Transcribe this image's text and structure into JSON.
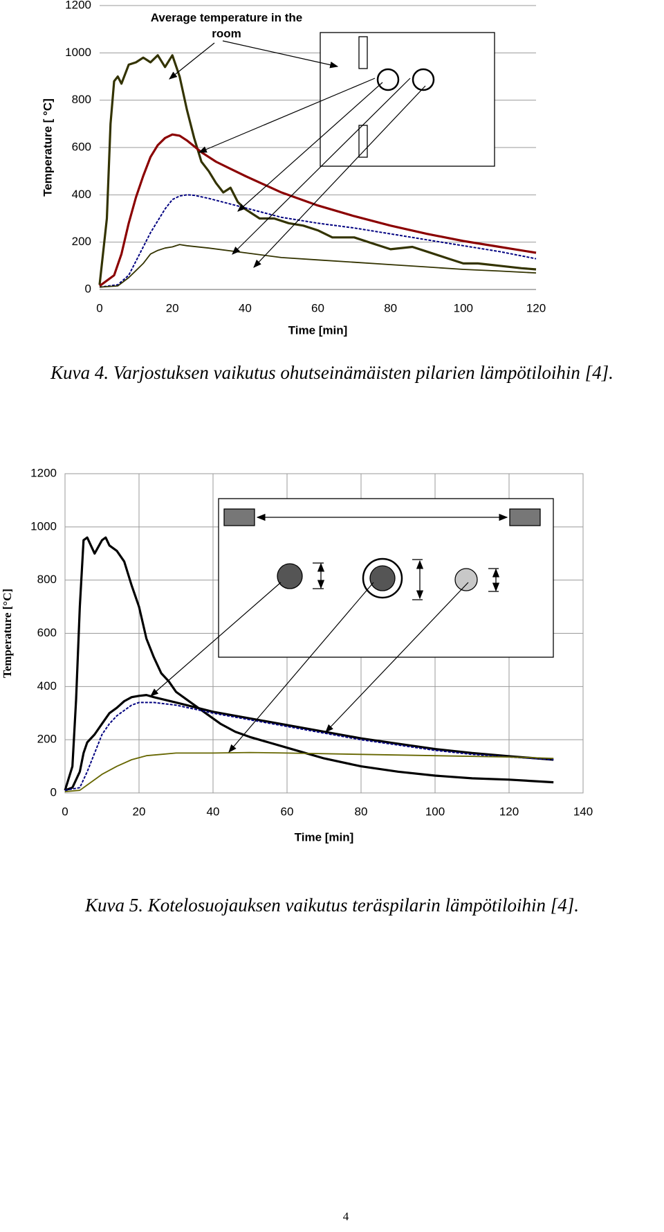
{
  "chart_data": [
    {
      "type": "line",
      "xlabel": "Time [min]",
      "ylabel": "Temperature [ °C]",
      "annotation": "Average temperature in the room",
      "caption": "Kuva 4. Varjostuksen vaikutus ohutseinämäisten pilarien lämpötiloihin [4].",
      "xlim": [
        0,
        120
      ],
      "xticks": [
        0,
        20,
        40,
        60,
        80,
        100,
        120
      ],
      "ylim": [
        0,
        1200
      ],
      "yticks": [
        0,
        200,
        400,
        600,
        800,
        1000,
        1200
      ],
      "grid": "y",
      "series": [
        {
          "color": "#333300",
          "style": "thick",
          "x": [
            0,
            2,
            3,
            4,
            5,
            6,
            8,
            10,
            12,
            14,
            16,
            18,
            20,
            22,
            24,
            26,
            28,
            30,
            32,
            34,
            36,
            38,
            40,
            44,
            48,
            52,
            56,
            60,
            64,
            70,
            76,
            80,
            86,
            90,
            96,
            100,
            104,
            110,
            116,
            120
          ],
          "values": [
            20,
            300,
            700,
            880,
            900,
            870,
            950,
            960,
            980,
            960,
            990,
            940,
            990,
            900,
            760,
            640,
            540,
            500,
            450,
            410,
            430,
            370,
            340,
            300,
            300,
            280,
            270,
            250,
            220,
            220,
            190,
            170,
            180,
            160,
            130,
            110,
            110,
            100,
            90,
            85
          ]
        },
        {
          "color": "#8b0000",
          "style": "thick",
          "x": [
            0,
            4,
            6,
            8,
            10,
            12,
            14,
            16,
            18,
            20,
            22,
            24,
            28,
            32,
            36,
            40,
            50,
            60,
            70,
            80,
            90,
            100,
            110,
            120
          ],
          "values": [
            15,
            60,
            150,
            280,
            390,
            480,
            560,
            610,
            640,
            655,
            650,
            630,
            580,
            540,
            510,
            480,
            410,
            355,
            310,
            270,
            235,
            205,
            180,
            155
          ]
        },
        {
          "color": "#000080",
          "style": "dotted",
          "x": [
            0,
            5,
            8,
            10,
            12,
            14,
            16,
            18,
            20,
            22,
            24,
            26,
            30,
            40,
            50,
            60,
            70,
            80,
            90,
            100,
            110,
            120
          ],
          "values": [
            10,
            20,
            60,
            120,
            180,
            240,
            290,
            340,
            380,
            395,
            400,
            398,
            385,
            345,
            305,
            280,
            260,
            235,
            210,
            185,
            160,
            130
          ]
        },
        {
          "color": "#333300",
          "style": "thin",
          "x": [
            0,
            5,
            8,
            10,
            12,
            14,
            16,
            18,
            20,
            22,
            24,
            30,
            40,
            50,
            60,
            70,
            80,
            90,
            100,
            110,
            120
          ],
          "values": [
            10,
            15,
            50,
            80,
            110,
            150,
            165,
            175,
            180,
            190,
            185,
            175,
            155,
            135,
            125,
            115,
            105,
            95,
            85,
            78,
            70
          ]
        }
      ]
    },
    {
      "type": "line",
      "xlabel": "Time [min]",
      "ylabel": "Temperature [°C]",
      "caption": "Kuva 5. Kotelosuojauksen vaikutus teräspilarin lämpötiloihin [4].",
      "xlim": [
        0,
        140
      ],
      "xticks": [
        0,
        20,
        40,
        60,
        80,
        100,
        120,
        140
      ],
      "ylim": [
        0,
        1200
      ],
      "yticks": [
        0,
        200,
        400,
        600,
        800,
        1000,
        1200
      ],
      "grid": "xy",
      "series": [
        {
          "color": "#000000",
          "style": "thick",
          "x": [
            0,
            2,
            3,
            4,
            5,
            6,
            8,
            10,
            11,
            12,
            14,
            16,
            18,
            20,
            22,
            24,
            26,
            28,
            30,
            34,
            38,
            42,
            46,
            50,
            55,
            60,
            65,
            70,
            80,
            90,
            100,
            110,
            120,
            132
          ],
          "values": [
            10,
            100,
            350,
            700,
            950,
            960,
            900,
            950,
            960,
            930,
            910,
            870,
            780,
            700,
            580,
            510,
            450,
            420,
            380,
            340,
            300,
            260,
            230,
            210,
            190,
            170,
            150,
            130,
            100,
            80,
            65,
            55,
            50,
            40
          ]
        },
        {
          "color": "#000000",
          "style": "thick",
          "x": [
            0,
            2,
            4,
            5,
            6,
            8,
            10,
            12,
            14,
            16,
            18,
            20,
            22,
            24,
            30,
            40,
            50,
            60,
            70,
            80,
            90,
            100,
            110,
            120,
            132
          ],
          "values": [
            10,
            20,
            80,
            150,
            190,
            220,
            260,
            300,
            320,
            345,
            360,
            365,
            368,
            360,
            340,
            305,
            280,
            255,
            230,
            205,
            185,
            165,
            150,
            138,
            125
          ]
        },
        {
          "color": "#000080",
          "style": "dotted",
          "x": [
            0,
            4,
            6,
            8,
            10,
            12,
            14,
            16,
            18,
            20,
            24,
            30,
            40,
            50,
            60,
            70,
            80,
            90,
            100,
            110,
            120,
            132
          ],
          "values": [
            10,
            20,
            80,
            150,
            220,
            260,
            290,
            310,
            330,
            340,
            340,
            330,
            300,
            275,
            250,
            225,
            200,
            180,
            160,
            145,
            135,
            125
          ]
        },
        {
          "color": "#666600",
          "style": "thin",
          "x": [
            0,
            4,
            6,
            10,
            14,
            18,
            22,
            26,
            30,
            40,
            50,
            60,
            80,
            100,
            120,
            132
          ],
          "values": [
            5,
            10,
            30,
            70,
            100,
            125,
            140,
            145,
            150,
            150,
            152,
            150,
            145,
            140,
            135,
            130
          ]
        }
      ]
    }
  ],
  "page_number": "4"
}
